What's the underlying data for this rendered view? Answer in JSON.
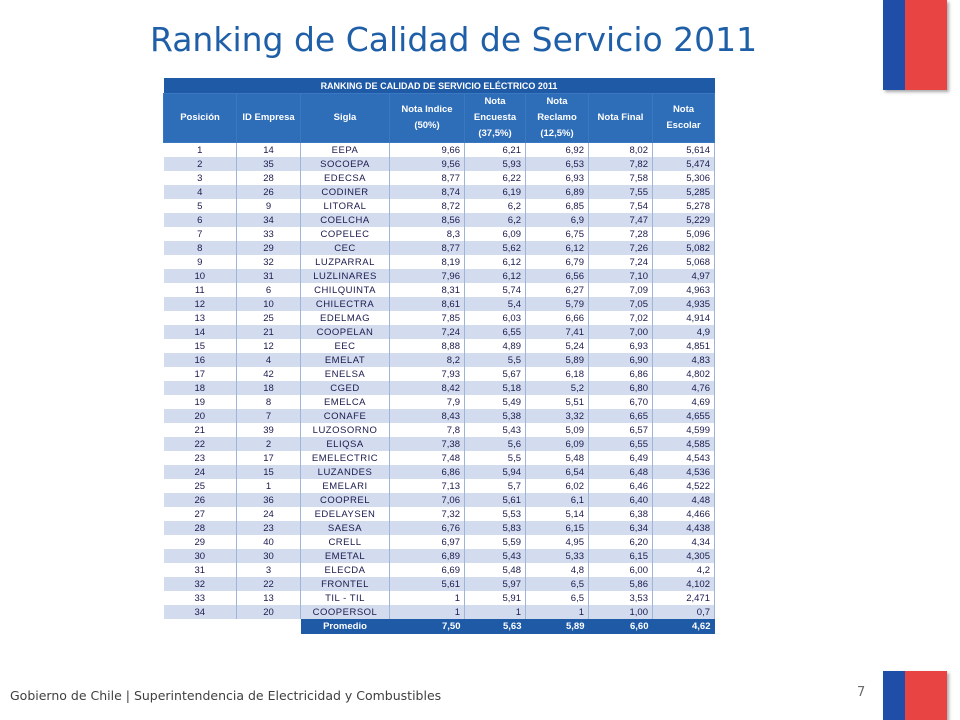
{
  "title": "Ranking de Calidad de Servicio 2011",
  "table": {
    "banner": "RANKING DE CALIDAD DE SERVICIO ELÉCTRICO 2011",
    "headers": [
      {
        "l1": "Posición",
        "l2": "",
        "l3": ""
      },
      {
        "l1": "ID Empresa",
        "l2": "",
        "l3": ""
      },
      {
        "l1": "Sigla",
        "l2": "",
        "l3": ""
      },
      {
        "l1": "Nota Indice",
        "l2": "(50%)",
        "l3": ""
      },
      {
        "l1": "Nota",
        "l2": "Encuesta",
        "l3": "(37,5%)"
      },
      {
        "l1": "Nota",
        "l2": "Reclamo",
        "l3": "(12,5%)"
      },
      {
        "l1": "Nota Final",
        "l2": "",
        "l3": ""
      },
      {
        "l1": "Nota Escolar",
        "l2": "",
        "l3": ""
      }
    ],
    "rows": [
      [
        "1",
        "14",
        "EEPA",
        "9,66",
        "6,21",
        "6,92",
        "8,02",
        "5,614"
      ],
      [
        "2",
        "35",
        "SOCOEPA",
        "9,56",
        "5,93",
        "6,53",
        "7,82",
        "5,474"
      ],
      [
        "3",
        "28",
        "EDECSA",
        "8,77",
        "6,22",
        "6,93",
        "7,58",
        "5,306"
      ],
      [
        "4",
        "26",
        "CODINER",
        "8,74",
        "6,19",
        "6,89",
        "7,55",
        "5,285"
      ],
      [
        "5",
        "9",
        "LITORAL",
        "8,72",
        "6,2",
        "6,85",
        "7,54",
        "5,278"
      ],
      [
        "6",
        "34",
        "COELCHA",
        "8,56",
        "6,2",
        "6,9",
        "7,47",
        "5,229"
      ],
      [
        "7",
        "33",
        "COPELEC",
        "8,3",
        "6,09",
        "6,75",
        "7,28",
        "5,096"
      ],
      [
        "8",
        "29",
        "CEC",
        "8,77",
        "5,62",
        "6,12",
        "7,26",
        "5,082"
      ],
      [
        "9",
        "32",
        "LUZPARRAL",
        "8,19",
        "6,12",
        "6,79",
        "7,24",
        "5,068"
      ],
      [
        "10",
        "31",
        "LUZLINARES",
        "7,96",
        "6,12",
        "6,56",
        "7,10",
        "4,97"
      ],
      [
        "11",
        "6",
        "CHILQUINTA",
        "8,31",
        "5,74",
        "6,27",
        "7,09",
        "4,963"
      ],
      [
        "12",
        "10",
        "CHILECTRA",
        "8,61",
        "5,4",
        "5,79",
        "7,05",
        "4,935"
      ],
      [
        "13",
        "25",
        "EDELMAG",
        "7,85",
        "6,03",
        "6,66",
        "7,02",
        "4,914"
      ],
      [
        "14",
        "21",
        "COOPELAN",
        "7,24",
        "6,55",
        "7,41",
        "7,00",
        "4,9"
      ],
      [
        "15",
        "12",
        "EEC",
        "8,88",
        "4,89",
        "5,24",
        "6,93",
        "4,851"
      ],
      [
        "16",
        "4",
        "EMELAT",
        "8,2",
        "5,5",
        "5,89",
        "6,90",
        "4,83"
      ],
      [
        "17",
        "42",
        "ENELSA",
        "7,93",
        "5,67",
        "6,18",
        "6,86",
        "4,802"
      ],
      [
        "18",
        "18",
        "CGED",
        "8,42",
        "5,18",
        "5,2",
        "6,80",
        "4,76"
      ],
      [
        "19",
        "8",
        "EMELCA",
        "7,9",
        "5,49",
        "5,51",
        "6,70",
        "4,69"
      ],
      [
        "20",
        "7",
        "CONAFE",
        "8,43",
        "5,38",
        "3,32",
        "6,65",
        "4,655"
      ],
      [
        "21",
        "39",
        "LUZOSORNO",
        "7,8",
        "5,43",
        "5,09",
        "6,57",
        "4,599"
      ],
      [
        "22",
        "2",
        "ELIQSA",
        "7,38",
        "5,6",
        "6,09",
        "6,55",
        "4,585"
      ],
      [
        "23",
        "17",
        "EMELECTRIC",
        "7,48",
        "5,5",
        "5,48",
        "6,49",
        "4,543"
      ],
      [
        "24",
        "15",
        "LUZANDES",
        "6,86",
        "5,94",
        "6,54",
        "6,48",
        "4,536"
      ],
      [
        "25",
        "1",
        "EMELARI",
        "7,13",
        "5,7",
        "6,02",
        "6,46",
        "4,522"
      ],
      [
        "26",
        "36",
        "COOPREL",
        "7,06",
        "5,61",
        "6,1",
        "6,40",
        "4,48"
      ],
      [
        "27",
        "24",
        "EDELAYSEN",
        "7,32",
        "5,53",
        "5,14",
        "6,38",
        "4,466"
      ],
      [
        "28",
        "23",
        "SAESA",
        "6,76",
        "5,83",
        "6,15",
        "6,34",
        "4,438"
      ],
      [
        "29",
        "40",
        "CRELL",
        "6,97",
        "5,59",
        "4,95",
        "6,20",
        "4,34"
      ],
      [
        "30",
        "30",
        "EMETAL",
        "6,89",
        "5,43",
        "5,33",
        "6,15",
        "4,305"
      ],
      [
        "31",
        "3",
        "ELECDA",
        "6,69",
        "5,48",
        "4,8",
        "6,00",
        "4,2"
      ],
      [
        "32",
        "22",
        "FRONTEL",
        "5,61",
        "5,97",
        "6,5",
        "5,86",
        "4,102"
      ],
      [
        "33",
        "13",
        "TIL - TIL",
        "1",
        "5,91",
        "6,5",
        "3,53",
        "2,471"
      ],
      [
        "34",
        "20",
        "COOPERSOL",
        "1",
        "1",
        "1",
        "1,00",
        "0,7"
      ]
    ],
    "average": {
      "label": "Promedio",
      "values": [
        "7,50",
        "5,63",
        "5,89",
        "6,60",
        "4,62"
      ]
    }
  },
  "footer": "Gobierno de Chile | Superintendencia de Electricidad y Combustibles",
  "page_number": "7",
  "colors": {
    "flag_blue": "#1f4ea8",
    "flag_red": "#e84443",
    "title": "#1f5fa8",
    "table_header": "#2e6db8",
    "row_alt": "#d3dcef"
  }
}
